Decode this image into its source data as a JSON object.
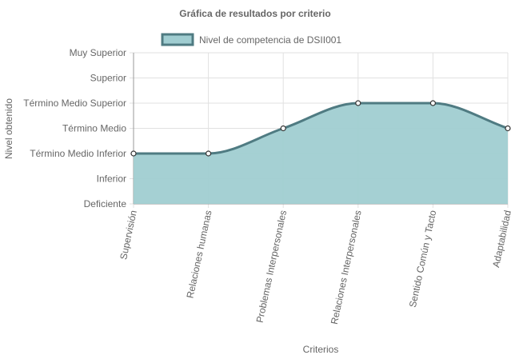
{
  "chart_data": {
    "type": "area",
    "title": "Gráfica de resultados por criterio",
    "xlabel": "Criterios",
    "ylabel": "Nivel obtenido",
    "categories": [
      "Supervisión",
      "Relaciones humanas",
      "Problemas Interpersonales",
      "Relaciones Interpersonales",
      "Sentido Común y Tacto",
      "Adaptabilidad"
    ],
    "y_levels": [
      "Deficiente",
      "Inferior",
      "Término Medio Inferior",
      "Término Medio",
      "Término Medio Superior",
      "Superior",
      "Muy Superior"
    ],
    "ylim": [
      0,
      6
    ],
    "series": [
      {
        "name": "Nivel de competencia de DSII001",
        "values": [
          2,
          2,
          3,
          4,
          4,
          3
        ]
      }
    ],
    "legend_position": "top",
    "grid": true,
    "colors": {
      "fill": "#a0cdd1",
      "line": "#4f7b82",
      "grid": "#e1e1e1",
      "axis": "#9a9a9a"
    }
  }
}
